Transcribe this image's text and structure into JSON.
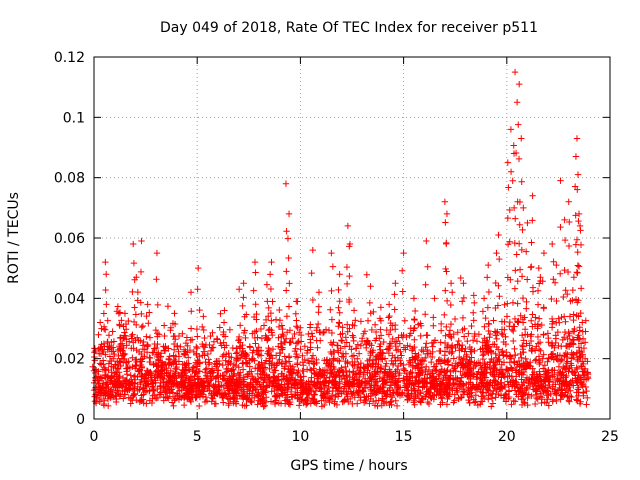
{
  "chart_data": {
    "type": "scatter",
    "title": "Day 049 of 2018, Rate Of TEC Index for receiver p511",
    "xlabel": "GPS time / hours",
    "ylabel": "ROTI / TECUs",
    "xlim": [
      0,
      25
    ],
    "ylim": [
      0,
      0.12
    ],
    "xticks": [
      0,
      5,
      10,
      15,
      20,
      25
    ],
    "xtick_labels": [
      "0",
      "5",
      "10",
      "15",
      "20",
      "25"
    ],
    "yticks": [
      0,
      0.02,
      0.04,
      0.06,
      0.08,
      0.1,
      0.12
    ],
    "ytick_labels": [
      "0",
      "0.02",
      "0.04",
      "0.06",
      "0.08",
      "0.1",
      "0.12"
    ],
    "grid": true,
    "marker": "+",
    "color": "#ff0000",
    "series": [
      {
        "name": "ROTI",
        "note": "dense band 0.005-0.03 TECU across 0-24 h; values below are the distinct peaks",
        "x": [
          0.0,
          0.3,
          0.55,
          0.6,
          0.9,
          1.3,
          1.5,
          1.9,
          2.05,
          2.3,
          2.6,
          3.05,
          3.4,
          3.9,
          4.5,
          4.7,
          5.05,
          5.3,
          6.3,
          7.0,
          7.25,
          7.8,
          8.4,
          8.6,
          9.1,
          9.3,
          9.45,
          9.8,
          10.6,
          10.9,
          11.5,
          11.9,
          12.3,
          12.4,
          12.6,
          13.4,
          13.9,
          14.3,
          14.6,
          15.0,
          15.5,
          16.1,
          16.5,
          17.0,
          17.1,
          17.3,
          17.9,
          18.4,
          18.9,
          19.1,
          19.5,
          19.6,
          20.05,
          20.2,
          20.35,
          20.4,
          20.5,
          20.6,
          20.7,
          20.8,
          21.0,
          21.25,
          21.55,
          21.8,
          22.2,
          22.4,
          22.6,
          22.8,
          23.0,
          23.25,
          23.35,
          23.4,
          23.45,
          23.5,
          23.55
        ],
        "y": [
          0.016,
          0.032,
          0.052,
          0.038,
          0.029,
          0.027,
          0.035,
          0.058,
          0.047,
          0.059,
          0.038,
          0.055,
          0.031,
          0.035,
          0.027,
          0.042,
          0.05,
          0.034,
          0.032,
          0.026,
          0.045,
          0.052,
          0.039,
          0.052,
          0.031,
          0.078,
          0.068,
          0.039,
          0.056,
          0.042,
          0.055,
          0.048,
          0.064,
          0.058,
          0.036,
          0.044,
          0.037,
          0.038,
          0.045,
          0.055,
          0.04,
          0.059,
          0.04,
          0.072,
          0.068,
          0.045,
          0.045,
          0.041,
          0.04,
          0.051,
          0.055,
          0.061,
          0.085,
          0.096,
          0.088,
          0.115,
          0.105,
          0.111,
          0.093,
          0.07,
          0.065,
          0.074,
          0.05,
          0.055,
          0.058,
          0.051,
          0.079,
          0.066,
          0.072,
          0.047,
          0.087,
          0.093,
          0.081,
          0.068,
          0.064
        ]
      }
    ]
  }
}
